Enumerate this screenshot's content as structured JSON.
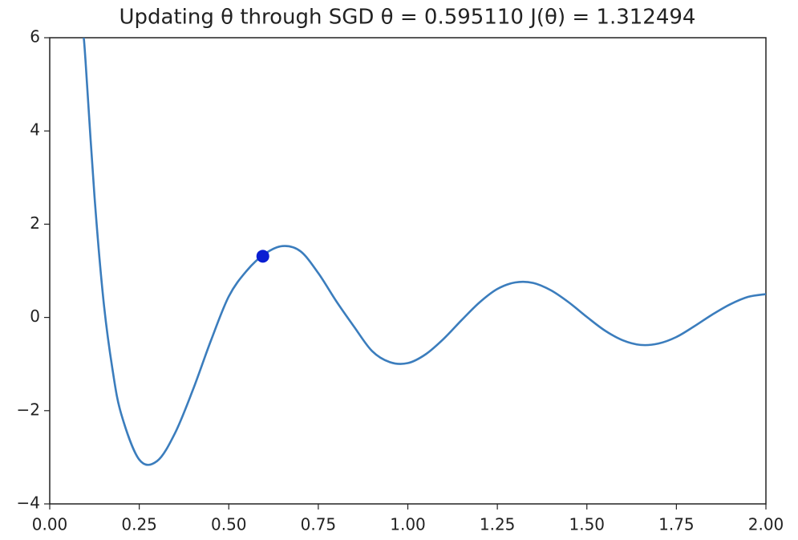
{
  "chart_data": {
    "type": "line",
    "title": "Updating θ through SGD θ = 0.595110 J(θ) = 1.312494",
    "x": [
      0.095,
      0.1,
      0.125,
      0.15,
      0.175,
      0.2,
      0.25,
      0.3,
      0.35,
      0.4,
      0.45,
      0.5,
      0.55,
      0.6,
      0.65,
      0.7,
      0.75,
      0.8,
      0.85,
      0.9,
      0.95,
      1.0,
      1.05,
      1.1,
      1.15,
      1.2,
      1.25,
      1.3,
      1.35,
      1.4,
      1.45,
      1.5,
      1.55,
      1.6,
      1.65,
      1.7,
      1.75,
      1.8,
      1.85,
      1.9,
      1.95,
      2.0
    ],
    "series": [
      {
        "color": "#3b7dbd",
        "values": [
          6.0,
          5.5,
          2.6,
          0.37,
          -1.1,
          -2.08,
          -3.05,
          -3.08,
          -2.48,
          -1.55,
          -0.5,
          0.45,
          1.0,
          1.36,
          1.53,
          1.42,
          0.95,
          0.35,
          -0.2,
          -0.72,
          -0.96,
          -0.98,
          -0.79,
          -0.46,
          -0.06,
          0.32,
          0.61,
          0.75,
          0.74,
          0.58,
          0.32,
          0.01,
          -0.28,
          -0.49,
          -0.59,
          -0.56,
          -0.42,
          -0.19,
          0.06,
          0.28,
          0.44,
          0.5
        ]
      }
    ],
    "point": {
      "x": 0.59511,
      "y": 1.312494,
      "color": "#0a1ed2"
    },
    "xlim": [
      0,
      2
    ],
    "ylim": [
      -4,
      6
    ],
    "xticks": [
      {
        "value": 0,
        "label": "0.00"
      },
      {
        "value": 0.25,
        "label": "0.25"
      },
      {
        "value": 0.5,
        "label": "0.50"
      },
      {
        "value": 0.75,
        "label": "0.75"
      },
      {
        "value": 1,
        "label": "1.00"
      },
      {
        "value": 1.25,
        "label": "1.25"
      },
      {
        "value": 1.5,
        "label": "1.50"
      },
      {
        "value": 1.75,
        "label": "1.75"
      },
      {
        "value": 2,
        "label": "2.00"
      }
    ],
    "yticks": [
      {
        "value": -4,
        "label": "−4"
      },
      {
        "value": -2,
        "label": "−2"
      },
      0,
      2,
      4,
      6
    ],
    "grid": false
  }
}
